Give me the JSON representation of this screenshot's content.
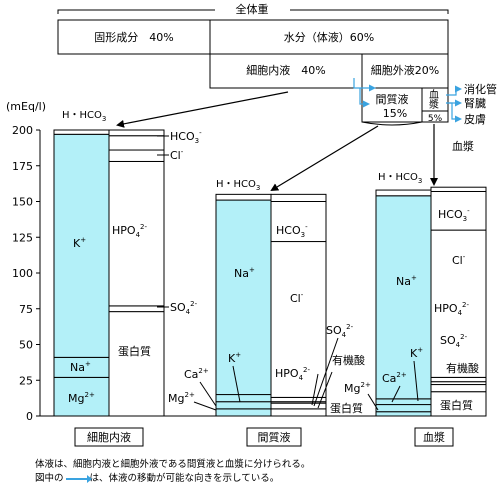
{
  "title": "全体重",
  "top": {
    "solid": "固形成分　40%",
    "water": "水分（体液）60%",
    "icf": "細胞内液　40%",
    "ecf": "細胞外液20%",
    "interstitial": "間質液",
    "interstitial_pct": "15%",
    "plasma_v": "血漿",
    "plasma_pct": "5%",
    "routes": [
      "消化管",
      "腎臓",
      "皮膚"
    ],
    "plasma_label": "血漿"
  },
  "axis": {
    "unit": "(mEq/l)",
    "ticks": [
      "200",
      "175",
      "150",
      "125",
      "100",
      "75",
      "50",
      "25",
      "0"
    ]
  },
  "chart_data": {
    "type": "stacked-column",
    "ylim": [
      0,
      200
    ],
    "yticks": [
      0,
      25,
      50,
      75,
      100,
      125,
      150,
      175,
      200
    ],
    "columns": [
      {
        "name": "細胞内液",
        "cations": [
          {
            "label": "Mg2+",
            "value": 27
          },
          {
            "label": "Na+",
            "value": 14
          },
          {
            "label": "K+",
            "value": 156
          },
          {
            "label": "H・HCO3",
            "value": 3
          }
        ],
        "anions": [
          {
            "label": "蛋白質",
            "value": 73
          },
          {
            "label": "SO42-",
            "value": 4
          },
          {
            "label": "HPO42-",
            "value": 101
          },
          {
            "label": "Cl-",
            "value": 8
          },
          {
            "label": "HCO3-",
            "value": 10
          },
          {
            "label": "(gap)",
            "value": 4
          }
        ]
      },
      {
        "name": "間質液",
        "cations": [
          {
            "label": "Mg2+",
            "value": 5
          },
          {
            "label": "Ca2+",
            "value": 5
          },
          {
            "label": "K+",
            "value": 5
          },
          {
            "label": "Na+",
            "value": 136
          },
          {
            "label": "H・HCO3",
            "value": 4
          }
        ],
        "anions": [
          {
            "label": "蛋白質",
            "value": 5
          },
          {
            "label": "有機酸",
            "value": 4
          },
          {
            "label": "SO42-",
            "value": 1
          },
          {
            "label": "HPO42-",
            "value": 3
          },
          {
            "label": "Cl-",
            "value": 109
          },
          {
            "label": "HCO3-",
            "value": 28
          },
          {
            "label": "(gap)",
            "value": 5
          }
        ]
      },
      {
        "name": "血漿",
        "cations": [
          {
            "label": "Mg2+",
            "value": 3
          },
          {
            "label": "Ca2+",
            "value": 5
          },
          {
            "label": "K+",
            "value": 4
          },
          {
            "label": "Na+",
            "value": 142
          },
          {
            "label": "H・HCO3",
            "value": 4
          }
        ],
        "anions": [
          {
            "label": "蛋白質",
            "value": 17
          },
          {
            "label": "有機酸",
            "value": 5
          },
          {
            "label": "SO42-",
            "value": 2
          },
          {
            "label": "HPO42-",
            "value": 3
          },
          {
            "label": "Cl-",
            "value": 103
          },
          {
            "label": "HCO3-",
            "value": 27
          },
          {
            "label": "(gap)",
            "value": 3
          }
        ]
      }
    ]
  },
  "labels": {
    "icf_col": "細胞内液",
    "isf_col": "間質液",
    "pl_col": "血漿",
    "hhco3": "H・HCO",
    "three": "3",
    "hco3": "HCO",
    "hco3_sup": "-",
    "cl": "Cl",
    "cl_sup": "-",
    "hpo4": "HPO",
    "hpo4_sup": "2-",
    "so4": "SO",
    "so4_sup": "2-",
    "four": "4",
    "protein": "蛋白質",
    "organic": "有機酸",
    "k": "K",
    "na": "Na",
    "mg": "Mg",
    "ca": "Ca",
    "plus": "+",
    "two_plus": "2+"
  },
  "notes": {
    "line1": "体液は、細胞内液と細胞外液である間質液と血漿に分けられる。",
    "line2a": "図中の",
    "line2b": "は、体液の移動が可能な向きを示している。"
  },
  "colors": {
    "cation": "#b3f0f8",
    "arrow": "#3aa3e0"
  }
}
